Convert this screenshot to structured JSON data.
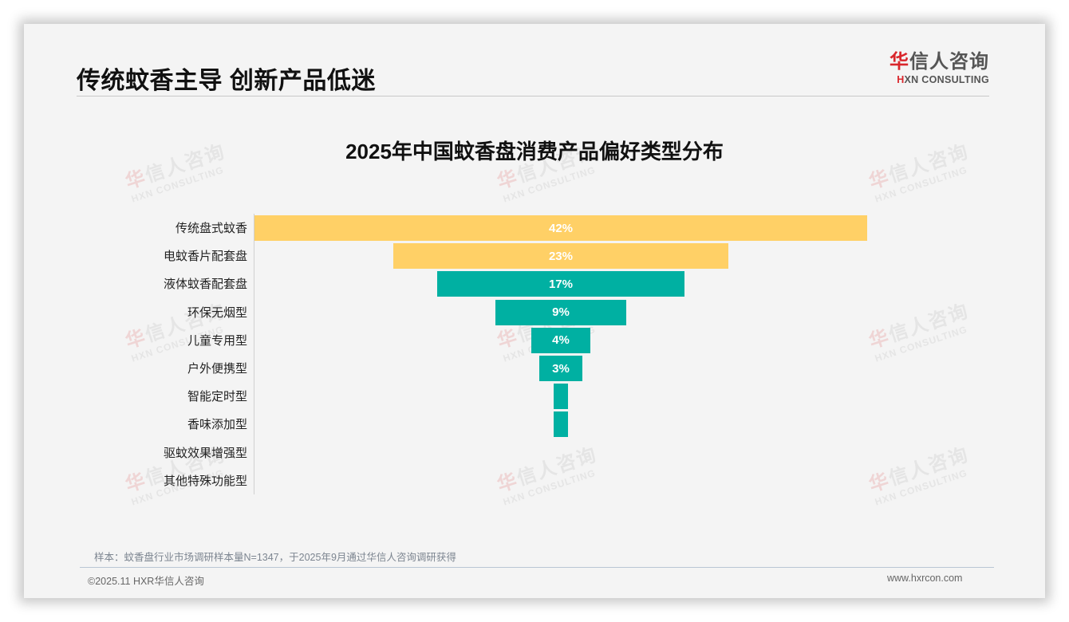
{
  "header": {
    "title": "传统蚊香主导 创新产品低迷",
    "logo": {
      "cn_accent": "华",
      "cn_rest": "信人咨询",
      "en_accent": "H",
      "en_rest": "XN CONSULTING"
    }
  },
  "watermark": {
    "cn_accent": "华",
    "cn_rest": "信人咨询",
    "en": "HXN CONSULTING"
  },
  "chart_data": {
    "type": "bar",
    "orientation": "horizontal-funnel",
    "title": "2025年中国蚊香盘消费产品偏好类型分布",
    "xlabel": "",
    "ylabel": "",
    "grid": false,
    "legend": null,
    "categories": [
      "传统盘式蚊香",
      "电蚊香片配套盘",
      "液体蚊香配套盘",
      "环保无烟型",
      "儿童专用型",
      "户外便携型",
      "智能定时型",
      "香味添加型",
      "驱蚊效果增强型",
      "其他特殊功能型"
    ],
    "values": [
      42,
      23,
      17,
      9,
      4,
      3,
      1,
      1,
      0,
      0
    ],
    "value_labels": [
      "42%",
      "23%",
      "17%",
      "9%",
      "4%",
      "3%",
      "",
      "",
      "",
      ""
    ],
    "unit": "%",
    "colors": [
      "#ffd066",
      "#ffd066",
      "#00b0a2",
      "#00b0a2",
      "#00b0a2",
      "#00b0a2",
      "#00b0a2",
      "#00b0a2",
      "#00b0a2",
      "#00b0a2"
    ]
  },
  "footer": {
    "note": "样本：蚊香盘行业市场调研样本量N=1347，于2025年9月通过华信人咨询调研获得",
    "copyright": "©2025.11 HXR华信人咨询",
    "website": "www.hxrcon.com"
  }
}
